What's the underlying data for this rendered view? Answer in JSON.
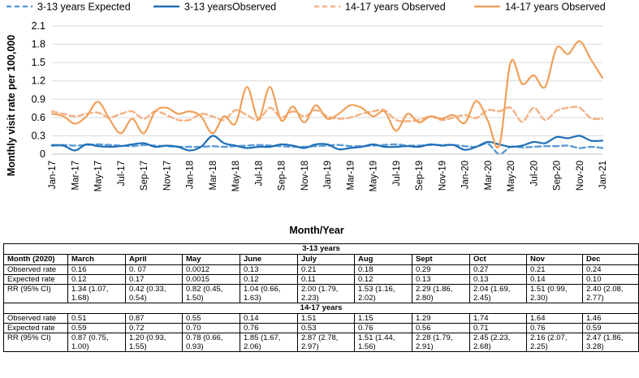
{
  "chart_data": {
    "type": "line",
    "title": "",
    "xlabel": "Month/Year",
    "ylabel": "Monthly visit rate per 100,000",
    "ylim": [
      0,
      2.1
    ],
    "y_ticks": [
      "0",
      "0.3",
      "0.6",
      "0.9",
      "1.2",
      "1.5",
      "1.8",
      "2.1"
    ],
    "x_ticks": [
      "Jan-17",
      "Mar-17",
      "May-17",
      "Jul-17",
      "Sep-17",
      "Nov-17",
      "Jan-18",
      "Mar-18",
      "May-18",
      "Jul-18",
      "Sep-18",
      "Nov-18",
      "Jan-19",
      "Mar-19",
      "May-19",
      "Jul-19",
      "Sep-19",
      "Nov-19",
      "Jan-20",
      "Mar-20",
      "May-20",
      "Jul-20",
      "Sep-20",
      "Nov-20",
      "Jan-21"
    ],
    "x_range": [
      0,
      48
    ],
    "legend": "top",
    "series": [
      {
        "name": "3-13 years Expected",
        "color": "#5b9bd5",
        "dash": "dashed",
        "values": [
          0.15,
          0.15,
          0.14,
          0.15,
          0.16,
          0.15,
          0.14,
          0.13,
          0.15,
          0.14,
          0.13,
          0.12,
          0.12,
          0.12,
          0.13,
          0.12,
          0.13,
          0.14,
          0.15,
          0.14,
          0.13,
          0.12,
          0.12,
          0.13,
          0.14,
          0.15,
          0.13,
          0.13,
          0.14,
          0.15,
          0.16,
          0.14,
          0.14,
          0.15,
          0.15,
          0.15,
          0.13,
          0.12,
          0.17,
          0.0015,
          0.12,
          0.11,
          0.12,
          0.13,
          0.13,
          0.14,
          0.1,
          0.12,
          0.1
        ]
      },
      {
        "name": "3-13 yearsObserved",
        "color": "#1f6fb5",
        "dash": "solid",
        "values": [
          0.14,
          0.14,
          0.06,
          0.16,
          0.13,
          0.12,
          0.13,
          0.16,
          0.18,
          0.12,
          0.14,
          0.12,
          0.06,
          0.12,
          0.3,
          0.18,
          0.14,
          0.1,
          0.12,
          0.12,
          0.16,
          0.14,
          0.1,
          0.16,
          0.16,
          0.08,
          0.1,
          0.12,
          0.16,
          0.12,
          0.12,
          0.13,
          0.12,
          0.16,
          0.14,
          0.15,
          0.07,
          0.12,
          0.2,
          0.16,
          0.12,
          0.14,
          0.2,
          0.18,
          0.28,
          0.26,
          0.3,
          0.22,
          0.22
        ]
      },
      {
        "name": "14-17 years Observed",
        "color": "#f4b183",
        "dash": "dashed",
        "values": [
          0.7,
          0.66,
          0.62,
          0.66,
          0.68,
          0.6,
          0.66,
          0.7,
          0.58,
          0.7,
          0.64,
          0.56,
          0.56,
          0.66,
          0.62,
          0.56,
          0.72,
          0.64,
          0.56,
          0.76,
          0.6,
          0.7,
          0.62,
          0.72,
          0.62,
          0.58,
          0.6,
          0.66,
          0.7,
          0.72,
          0.56,
          0.54,
          0.56,
          0.62,
          0.56,
          0.6,
          0.64,
          0.59,
          0.72,
          0.7,
          0.76,
          0.53,
          0.76,
          0.56,
          0.71,
          0.76,
          0.76,
          0.59,
          0.58
        ]
      },
      {
        "name": "14-17 years Observed",
        "color": "#f0a05a",
        "dash": "solid",
        "values": [
          0.66,
          0.62,
          0.5,
          0.62,
          0.86,
          0.58,
          0.34,
          0.58,
          0.34,
          0.7,
          0.76,
          0.66,
          0.7,
          0.62,
          0.34,
          0.62,
          0.5,
          1.1,
          0.58,
          1.1,
          0.55,
          0.78,
          0.52,
          0.8,
          0.58,
          0.66,
          0.8,
          0.76,
          0.62,
          0.7,
          0.38,
          0.66,
          0.52,
          0.62,
          0.58,
          0.64,
          0.51,
          0.87,
          0.55,
          0.14,
          1.51,
          1.15,
          1.29,
          1.1,
          1.74,
          1.64,
          1.85,
          1.55,
          1.25
        ]
      }
    ]
  },
  "table": {
    "group1_title": "3-13 years",
    "group2_title": "14-17 years",
    "header": [
      "Month (2020)",
      "March",
      "April",
      "May",
      "June",
      "July",
      "Aug",
      "Sept",
      "Oct",
      "Nov",
      "Dec"
    ],
    "g1_observed": [
      "Observed rate",
      "0.16",
      "0. 07",
      "0.0012",
      "0.13",
      "0.21",
      "0.18",
      "0.29",
      "0.27",
      "0.21",
      "0.24"
    ],
    "g1_expected": [
      "Expected rate",
      "0.12",
      "0.17",
      "0.0015",
      "0.12",
      "0.11",
      "0.12",
      "0.13",
      "0.13",
      "0.14",
      "0.10"
    ],
    "g1_rr": [
      "RR (95% CI)",
      "1.34 (1.07, 1.68)",
      "0.42 (0.33, 0.54)",
      "0.82 (0.45, 1.50)",
      "1.04 (0.66, 1.63)",
      "2.00 (1.79, 2.23)",
      "1.53 (1.16, 2.02)",
      "2.29 (1.86, 2.80)",
      "2.04 (1.69, 2.45)",
      "1.51 (0.99, 2.30)",
      "2.40 (2.08, 2.77)"
    ],
    "g2_observed": [
      "Observed rate",
      "0.51",
      "0.87",
      "0.55",
      "0.14",
      "1.51",
      "1.15",
      "1.29",
      "1.74",
      "1.64",
      "1.46"
    ],
    "g2_expected": [
      "Expected rate",
      "0.59",
      "0.72",
      "0.70",
      "0.76",
      "0.53",
      "0.76",
      "0.56",
      "0.71",
      "0.76",
      "0.59"
    ],
    "g2_rr": [
      "RR (95% CI)",
      "0.87 (0.75, 1.00)",
      "1.20 (0.93, 1.55)",
      "0.78 (0.66, 0.93)",
      "1.85 (1.67, 2.06)",
      "2.87 (2.78, 2.97)",
      "1.51 (1.44, 1.56)",
      "2.28 (1.79, 2.91)",
      "2.45 (2.23, 2.68)",
      "2.16 (2.07, 2.25)",
      "2.47 (1.86, 3.28)"
    ]
  }
}
